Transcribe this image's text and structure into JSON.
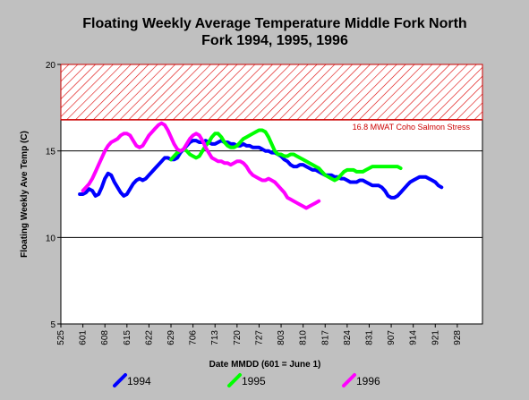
{
  "chart_data": {
    "type": "line",
    "title_lines": [
      "Floating Weekly Average Temperature Middle Fork North",
      "Fork 1994, 1995, 1996"
    ],
    "xlabel": "Date MMDD (601 = June 1)",
    "ylabel": "Floating Weekly Ave Temp (C)",
    "xlim": [
      -7,
      127
    ],
    "ylim": [
      5,
      20
    ],
    "x_ticks": [
      {
        "label": "525",
        "day": -7
      },
      {
        "label": "601",
        "day": 0
      },
      {
        "label": "608",
        "day": 7
      },
      {
        "label": "615",
        "day": 14
      },
      {
        "label": "622",
        "day": 21
      },
      {
        "label": "629",
        "day": 28
      },
      {
        "label": "706",
        "day": 35
      },
      {
        "label": "713",
        "day": 42
      },
      {
        "label": "720",
        "day": 49
      },
      {
        "label": "727",
        "day": 56
      },
      {
        "label": "803",
        "day": 63
      },
      {
        "label": "810",
        "day": 70
      },
      {
        "label": "817",
        "day": 77
      },
      {
        "label": "824",
        "day": 84
      },
      {
        "label": "831",
        "day": 91
      },
      {
        "label": "907",
        "day": 98
      },
      {
        "label": "914",
        "day": 105
      },
      {
        "label": "921",
        "day": 112
      },
      {
        "label": "928",
        "day": 119
      }
    ],
    "y_ticks": [
      5,
      10,
      15,
      20
    ],
    "grid_y": [
      10,
      15
    ],
    "threshold": {
      "value": 16.8,
      "label": "16.8 MWAT Coho Salmon Stress",
      "color": "#cc0000"
    },
    "legend_position": "bottom",
    "series": [
      {
        "name": "1994",
        "color": "#0000ff",
        "points": [
          [
            -1,
            12.5
          ],
          [
            0,
            12.5
          ],
          [
            1,
            12.6
          ],
          [
            2,
            12.8
          ],
          [
            3,
            12.7
          ],
          [
            4,
            12.4
          ],
          [
            5,
            12.5
          ],
          [
            6,
            12.9
          ],
          [
            7,
            13.4
          ],
          [
            8,
            13.7
          ],
          [
            9,
            13.6
          ],
          [
            10,
            13.2
          ],
          [
            11,
            12.9
          ],
          [
            12,
            12.6
          ],
          [
            13,
            12.4
          ],
          [
            14,
            12.5
          ],
          [
            15,
            12.8
          ],
          [
            16,
            13.1
          ],
          [
            17,
            13.3
          ],
          [
            18,
            13.4
          ],
          [
            19,
            13.3
          ],
          [
            20,
            13.4
          ],
          [
            21,
            13.6
          ],
          [
            22,
            13.8
          ],
          [
            23,
            14.0
          ],
          [
            24,
            14.2
          ],
          [
            25,
            14.4
          ],
          [
            26,
            14.6
          ],
          [
            27,
            14.6
          ],
          [
            28,
            14.5
          ],
          [
            29,
            14.5
          ],
          [
            30,
            14.6
          ],
          [
            31,
            14.9
          ],
          [
            32,
            15.1
          ],
          [
            33,
            15.3
          ],
          [
            34,
            15.5
          ],
          [
            35,
            15.6
          ],
          [
            36,
            15.6
          ],
          [
            37,
            15.5
          ],
          [
            38,
            15.5
          ],
          [
            39,
            15.6
          ],
          [
            40,
            15.5
          ],
          [
            41,
            15.4
          ],
          [
            42,
            15.4
          ],
          [
            43,
            15.5
          ],
          [
            44,
            15.6
          ],
          [
            45,
            15.5
          ],
          [
            46,
            15.5
          ],
          [
            47,
            15.4
          ],
          [
            48,
            15.4
          ],
          [
            49,
            15.3
          ],
          [
            50,
            15.3
          ],
          [
            51,
            15.4
          ],
          [
            52,
            15.3
          ],
          [
            53,
            15.3
          ],
          [
            54,
            15.2
          ],
          [
            55,
            15.2
          ],
          [
            56,
            15.2
          ],
          [
            57,
            15.1
          ],
          [
            58,
            15.0
          ],
          [
            59,
            15.0
          ],
          [
            60,
            14.9
          ],
          [
            61,
            14.9
          ],
          [
            62,
            14.8
          ],
          [
            63,
            14.7
          ],
          [
            64,
            14.5
          ],
          [
            65,
            14.4
          ],
          [
            66,
            14.2
          ],
          [
            67,
            14.1
          ],
          [
            68,
            14.1
          ],
          [
            69,
            14.2
          ],
          [
            70,
            14.2
          ],
          [
            71,
            14.1
          ],
          [
            72,
            14.0
          ],
          [
            73,
            13.9
          ],
          [
            74,
            13.9
          ],
          [
            75,
            13.8
          ],
          [
            76,
            13.7
          ],
          [
            77,
            13.6
          ],
          [
            78,
            13.6
          ],
          [
            79,
            13.6
          ],
          [
            80,
            13.5
          ],
          [
            81,
            13.5
          ],
          [
            82,
            13.4
          ],
          [
            83,
            13.4
          ],
          [
            84,
            13.3
          ],
          [
            85,
            13.2
          ],
          [
            86,
            13.2
          ],
          [
            87,
            13.2
          ],
          [
            88,
            13.3
          ],
          [
            89,
            13.3
          ],
          [
            90,
            13.2
          ],
          [
            91,
            13.1
          ],
          [
            92,
            13.0
          ],
          [
            93,
            13.0
          ],
          [
            94,
            13.0
          ],
          [
            95,
            12.9
          ],
          [
            96,
            12.7
          ],
          [
            97,
            12.4
          ],
          [
            98,
            12.3
          ],
          [
            99,
            12.3
          ],
          [
            100,
            12.4
          ],
          [
            101,
            12.6
          ],
          [
            102,
            12.8
          ],
          [
            103,
            13.0
          ],
          [
            104,
            13.2
          ],
          [
            105,
            13.3
          ],
          [
            106,
            13.4
          ],
          [
            107,
            13.5
          ],
          [
            108,
            13.5
          ],
          [
            109,
            13.5
          ],
          [
            110,
            13.4
          ],
          [
            111,
            13.3
          ],
          [
            112,
            13.2
          ],
          [
            113,
            13.0
          ],
          [
            114,
            12.9
          ]
        ]
      },
      {
        "name": "1995",
        "color": "#00ff00",
        "points": [
          [
            28,
            14.5
          ],
          [
            29,
            14.7
          ],
          [
            30,
            14.9
          ],
          [
            31,
            15.0
          ],
          [
            32,
            15.1
          ],
          [
            33,
            15.0
          ],
          [
            34,
            14.8
          ],
          [
            35,
            14.7
          ],
          [
            36,
            14.6
          ],
          [
            37,
            14.7
          ],
          [
            38,
            15.0
          ],
          [
            39,
            15.3
          ],
          [
            40,
            15.5
          ],
          [
            41,
            15.8
          ],
          [
            42,
            16.0
          ],
          [
            43,
            16.0
          ],
          [
            44,
            15.8
          ],
          [
            45,
            15.5
          ],
          [
            46,
            15.3
          ],
          [
            47,
            15.2
          ],
          [
            48,
            15.2
          ],
          [
            49,
            15.3
          ],
          [
            50,
            15.5
          ],
          [
            51,
            15.7
          ],
          [
            52,
            15.8
          ],
          [
            53,
            15.9
          ],
          [
            54,
            16.0
          ],
          [
            55,
            16.1
          ],
          [
            56,
            16.2
          ],
          [
            57,
            16.2
          ],
          [
            58,
            16.1
          ],
          [
            59,
            15.8
          ],
          [
            60,
            15.4
          ],
          [
            61,
            15.0
          ],
          [
            62,
            14.8
          ],
          [
            63,
            14.8
          ],
          [
            64,
            14.7
          ],
          [
            65,
            14.7
          ],
          [
            66,
            14.8
          ],
          [
            67,
            14.8
          ],
          [
            68,
            14.7
          ],
          [
            69,
            14.6
          ],
          [
            70,
            14.5
          ],
          [
            71,
            14.4
          ],
          [
            72,
            14.3
          ],
          [
            73,
            14.2
          ],
          [
            74,
            14.1
          ],
          [
            75,
            14.0
          ],
          [
            76,
            13.8
          ],
          [
            77,
            13.6
          ],
          [
            78,
            13.5
          ],
          [
            79,
            13.4
          ],
          [
            80,
            13.3
          ],
          [
            81,
            13.4
          ],
          [
            82,
            13.6
          ],
          [
            83,
            13.8
          ],
          [
            84,
            13.9
          ],
          [
            85,
            13.9
          ],
          [
            86,
            13.9
          ],
          [
            87,
            13.8
          ],
          [
            88,
            13.8
          ],
          [
            89,
            13.8
          ],
          [
            90,
            13.9
          ],
          [
            91,
            14.0
          ],
          [
            92,
            14.1
          ],
          [
            93,
            14.1
          ],
          [
            94,
            14.1
          ],
          [
            95,
            14.1
          ],
          [
            96,
            14.1
          ],
          [
            97,
            14.1
          ],
          [
            98,
            14.1
          ],
          [
            99,
            14.1
          ],
          [
            100,
            14.1
          ],
          [
            101,
            14.0
          ]
        ]
      },
      {
        "name": "1996",
        "color": "#ff00ff",
        "points": [
          [
            0,
            12.7
          ],
          [
            1,
            12.9
          ],
          [
            2,
            13.1
          ],
          [
            3,
            13.4
          ],
          [
            4,
            13.8
          ],
          [
            5,
            14.2
          ],
          [
            6,
            14.6
          ],
          [
            7,
            15.0
          ],
          [
            8,
            15.3
          ],
          [
            9,
            15.5
          ],
          [
            10,
            15.6
          ],
          [
            11,
            15.7
          ],
          [
            12,
            15.9
          ],
          [
            13,
            16.0
          ],
          [
            14,
            16.0
          ],
          [
            15,
            15.9
          ],
          [
            16,
            15.6
          ],
          [
            17,
            15.3
          ],
          [
            18,
            15.2
          ],
          [
            19,
            15.3
          ],
          [
            20,
            15.6
          ],
          [
            21,
            15.9
          ],
          [
            22,
            16.1
          ],
          [
            23,
            16.3
          ],
          [
            24,
            16.5
          ],
          [
            25,
            16.6
          ],
          [
            26,
            16.5
          ],
          [
            27,
            16.2
          ],
          [
            28,
            15.8
          ],
          [
            29,
            15.4
          ],
          [
            30,
            15.1
          ],
          [
            31,
            15.0
          ],
          [
            32,
            15.1
          ],
          [
            33,
            15.4
          ],
          [
            34,
            15.7
          ],
          [
            35,
            15.9
          ],
          [
            36,
            16.0
          ],
          [
            37,
            15.9
          ],
          [
            38,
            15.6
          ],
          [
            39,
            15.2
          ],
          [
            40,
            14.9
          ],
          [
            41,
            14.6
          ],
          [
            42,
            14.5
          ],
          [
            43,
            14.4
          ],
          [
            44,
            14.4
          ],
          [
            45,
            14.3
          ],
          [
            46,
            14.3
          ],
          [
            47,
            14.2
          ],
          [
            48,
            14.3
          ],
          [
            49,
            14.4
          ],
          [
            50,
            14.4
          ],
          [
            51,
            14.3
          ],
          [
            52,
            14.1
          ],
          [
            53,
            13.8
          ],
          [
            54,
            13.6
          ],
          [
            55,
            13.5
          ],
          [
            56,
            13.4
          ],
          [
            57,
            13.3
          ],
          [
            58,
            13.3
          ],
          [
            59,
            13.4
          ],
          [
            60,
            13.3
          ],
          [
            61,
            13.2
          ],
          [
            62,
            13.0
          ],
          [
            63,
            12.8
          ],
          [
            64,
            12.6
          ],
          [
            65,
            12.3
          ],
          [
            66,
            12.2
          ],
          [
            67,
            12.1
          ],
          [
            68,
            12.0
          ],
          [
            69,
            11.9
          ],
          [
            70,
            11.8
          ],
          [
            71,
            11.7
          ],
          [
            72,
            11.8
          ],
          [
            73,
            11.9
          ],
          [
            74,
            12.0
          ],
          [
            75,
            12.1
          ]
        ]
      }
    ]
  }
}
